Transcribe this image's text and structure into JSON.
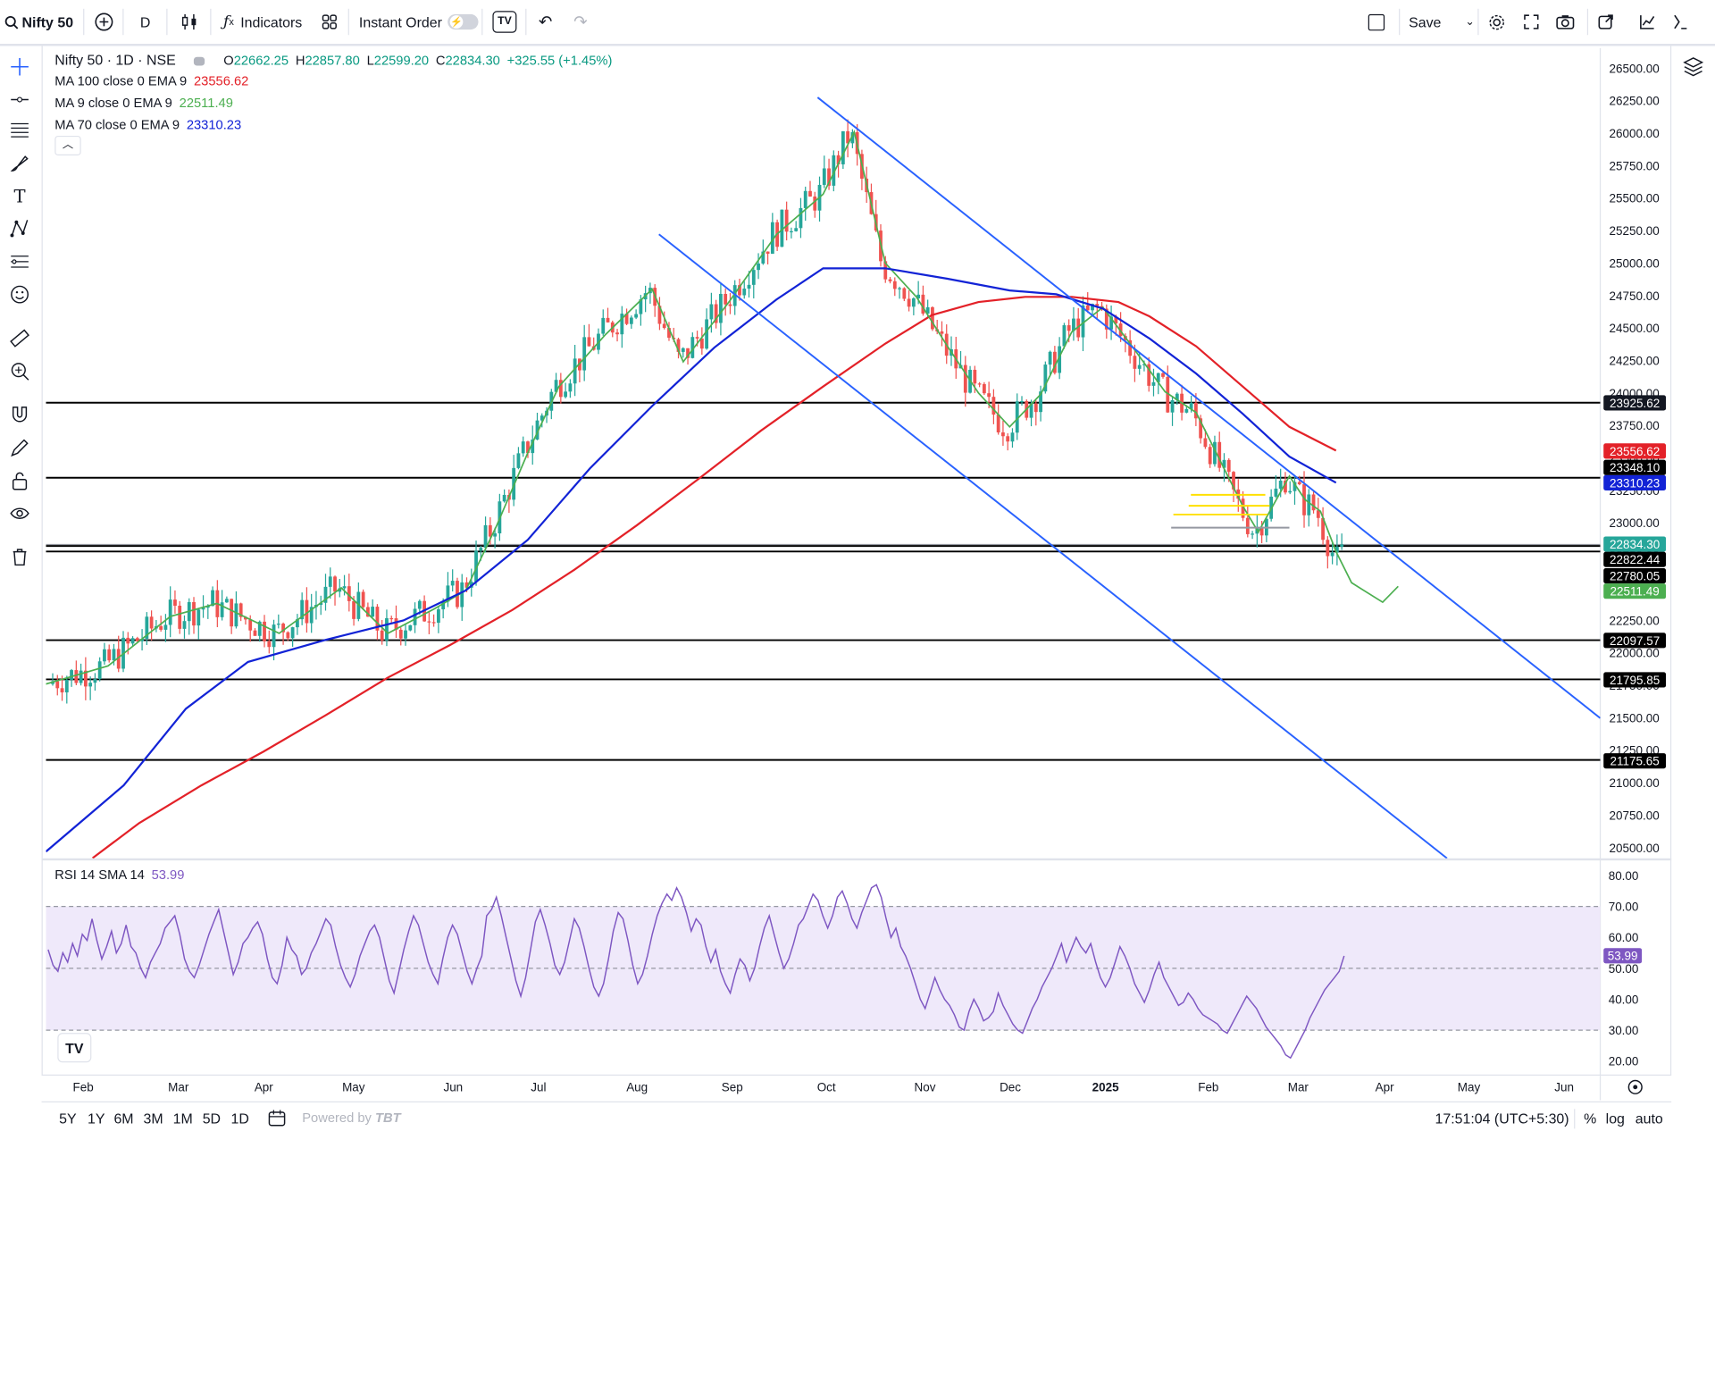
{
  "toolbar": {
    "symbol": "Nifty 50",
    "interval": "D",
    "indicators_label": "Indicators",
    "instant_order_label": "Instant Order",
    "save_label": "Save"
  },
  "legend": {
    "title": "Nifty 50 · 1D · NSE",
    "o_label": "O",
    "o": "22662.25",
    "h_label": "H",
    "h": "22857.80",
    "l_label": "L",
    "l": "22599.20",
    "c_label": "C",
    "c": "22834.30",
    "change": "+325.55 (+1.45%)",
    "ma100_label": "MA 100 close 0 EMA 9",
    "ma100_value": "23556.62",
    "ma9_label": "MA 9 close 0 EMA 9",
    "ma9_value": "22511.49",
    "ma70_label": "MA 70 close 0 EMA 9",
    "ma70_value": "23310.23",
    "rsi_label": "RSI 14 SMA 14",
    "rsi_value": "53.99"
  },
  "colors": {
    "up": "#26a69a",
    "down": "#ef5350",
    "ma100": "#e32128",
    "ma9": "#4caf50",
    "ma70": "#1223d6",
    "trend": "#2962ff",
    "rsi": "#7e57c2",
    "rsi_band": "#efe9fa"
  },
  "bottom": {
    "ranges": [
      "5Y",
      "1Y",
      "6M",
      "3M",
      "1M",
      "5D",
      "1D"
    ],
    "powered_by": "Powered by",
    "time": "17:51:04 (UTC+5:30)",
    "pct": "%",
    "log": "log",
    "auto": "auto"
  },
  "chart_data": [
    {
      "type": "candlestick",
      "title": "Nifty 50 · 1D · NSE",
      "x_ticks": [
        "Feb",
        "Mar",
        "Apr",
        "May",
        "Jun",
        "Jul",
        "Aug",
        "Sep",
        "Oct",
        "Nov",
        "Dec",
        "2025",
        "Feb",
        "Mar",
        "Apr",
        "May",
        "Jun"
      ],
      "y_ticks": [
        20500,
        20750,
        21000,
        21250,
        21500,
        21750,
        22000,
        22250,
        22500,
        22750,
        23000,
        23250,
        23500,
        23750,
        24000,
        24250,
        24500,
        24750,
        25000,
        25250,
        25500,
        25750,
        26000,
        26250,
        26500
      ],
      "ylim": [
        20420,
        26600
      ],
      "last_close": 22834.3,
      "series": [
        {
          "name": "MA 100 close 0 EMA 9",
          "last": 23556.62,
          "points": [
            [
              0.03,
              20420
            ],
            [
              0.06,
              20690
            ],
            [
              0.1,
              20980
            ],
            [
              0.14,
              21240
            ],
            [
              0.18,
              21520
            ],
            [
              0.22,
              21810
            ],
            [
              0.26,
              22060
            ],
            [
              0.3,
              22330
            ],
            [
              0.34,
              22640
            ],
            [
              0.38,
              22980
            ],
            [
              0.42,
              23340
            ],
            [
              0.46,
              23710
            ],
            [
              0.5,
              24050
            ],
            [
              0.54,
              24380
            ],
            [
              0.57,
              24600
            ],
            [
              0.6,
              24700
            ],
            [
              0.63,
              24740
            ],
            [
              0.66,
              24740
            ],
            [
              0.69,
              24700
            ],
            [
              0.71,
              24590
            ],
            [
              0.74,
              24360
            ],
            [
              0.77,
              24050
            ],
            [
              0.8,
              23740
            ],
            [
              0.83,
              23556.62
            ]
          ]
        },
        {
          "name": "MA 9 close 0 EMA 9",
          "last": 22511.49,
          "points": [
            [
              0,
              21760
            ],
            [
              0.04,
              21900
            ],
            [
              0.08,
              22280
            ],
            [
              0.11,
              22380
            ],
            [
              0.15,
              22150
            ],
            [
              0.19,
              22500
            ],
            [
              0.22,
              22150
            ],
            [
              0.25,
              22340
            ],
            [
              0.27,
              22480
            ],
            [
              0.29,
              22980
            ],
            [
              0.31,
              23540
            ],
            [
              0.33,
              24050
            ],
            [
              0.36,
              24450
            ],
            [
              0.39,
              24800
            ],
            [
              0.41,
              24240
            ],
            [
              0.44,
              24710
            ],
            [
              0.47,
              25220
            ],
            [
              0.5,
              25530
            ],
            [
              0.52,
              26010
            ],
            [
              0.54,
              25000
            ],
            [
              0.56,
              24740
            ],
            [
              0.58,
              24360
            ],
            [
              0.6,
              24000
            ],
            [
              0.62,
              23740
            ],
            [
              0.64,
              23990
            ],
            [
              0.66,
              24470
            ],
            [
              0.68,
              24660
            ],
            [
              0.7,
              24340
            ],
            [
              0.72,
              24010
            ],
            [
              0.74,
              23850
            ],
            [
              0.75,
              23610
            ],
            [
              0.77,
              23130
            ],
            [
              0.78,
              22930
            ],
            [
              0.8,
              23360
            ],
            [
              0.81,
              23180
            ],
            [
              0.82,
              23090
            ],
            [
              0.83,
              22780
            ],
            [
              0.84,
              22540
            ],
            [
              0.86,
              22390
            ],
            [
              0.87,
              22511.49
            ]
          ]
        },
        {
          "name": "MA 70 close 0 EMA 9",
          "last": 23310.23,
          "points": [
            [
              0,
              20470
            ],
            [
              0.05,
              20980
            ],
            [
              0.09,
              21570
            ],
            [
              0.13,
              21930
            ],
            [
              0.18,
              22100
            ],
            [
              0.23,
              22250
            ],
            [
              0.27,
              22480
            ],
            [
              0.31,
              22870
            ],
            [
              0.35,
              23420
            ],
            [
              0.39,
              23900
            ],
            [
              0.43,
              24350
            ],
            [
              0.47,
              24720
            ],
            [
              0.5,
              24960
            ],
            [
              0.54,
              24960
            ],
            [
              0.58,
              24880
            ],
            [
              0.62,
              24790
            ],
            [
              0.65,
              24760
            ],
            [
              0.68,
              24650
            ],
            [
              0.71,
              24420
            ],
            [
              0.74,
              24150
            ],
            [
              0.77,
              23840
            ],
            [
              0.8,
              23510
            ],
            [
              0.83,
              23310.23
            ]
          ]
        }
      ],
      "horizontal_levels": [
        23925.62,
        23348.1,
        22834.3,
        22822.44,
        22780.05,
        22097.57,
        21795.85,
        21175.65
      ]
    },
    {
      "type": "line",
      "title": "RSI 14 SMA 14",
      "y_ticks": [
        20,
        30,
        40,
        50,
        60,
        70,
        80
      ],
      "ylim": [
        17,
        82
      ],
      "band": [
        30,
        70
      ],
      "midline": 50,
      "last": 53.99,
      "values": [
        56,
        51,
        49,
        55,
        52,
        58,
        54,
        61,
        59,
        66,
        59,
        53,
        57,
        62,
        55,
        58,
        64,
        57,
        55,
        50,
        47,
        52,
        55,
        58,
        63,
        65,
        67,
        61,
        53,
        49,
        47,
        51,
        56,
        61,
        65,
        69,
        62,
        55,
        48,
        52,
        58,
        60,
        63,
        65,
        61,
        53,
        47,
        45,
        51,
        60,
        56,
        54,
        48,
        50,
        55,
        58,
        62,
        66,
        64,
        57,
        51,
        47,
        44,
        48,
        54,
        58,
        62,
        64,
        60,
        53,
        46,
        42,
        49,
        56,
        62,
        67,
        64,
        58,
        52,
        48,
        45,
        53,
        60,
        64,
        61,
        55,
        49,
        45,
        50,
        54,
        67,
        69,
        73,
        67,
        60,
        53,
        46,
        41,
        47,
        56,
        65,
        69,
        64,
        58,
        51,
        48,
        52,
        59,
        66,
        63,
        57,
        50,
        44,
        41,
        45,
        53,
        62,
        68,
        66,
        59,
        51,
        45,
        48,
        54,
        61,
        67,
        71,
        74,
        72,
        76,
        73,
        68,
        62,
        66,
        64,
        57,
        52,
        56,
        49,
        45,
        42,
        48,
        53,
        51,
        46,
        50,
        57,
        63,
        67,
        61,
        55,
        50,
        53,
        58,
        64,
        66,
        70,
        74,
        72,
        67,
        63,
        67,
        73,
        75,
        71,
        66,
        63,
        68,
        72,
        76,
        77,
        73,
        66,
        60,
        63,
        57,
        54,
        50,
        45,
        40,
        37,
        42,
        47,
        43,
        40,
        38,
        35,
        31,
        30,
        36,
        40,
        37,
        33,
        34,
        36,
        42,
        38,
        35,
        32,
        30,
        29,
        33,
        37,
        40,
        44,
        47,
        50,
        54,
        58,
        52,
        56,
        60,
        57,
        55,
        58,
        52,
        47,
        44,
        47,
        52,
        57,
        54,
        50,
        45,
        42,
        39,
        43,
        48,
        52,
        47,
        44,
        41,
        38,
        39,
        42,
        40,
        37,
        35,
        34,
        33,
        32,
        30,
        29,
        32,
        35,
        38,
        41,
        39,
        37,
        34,
        31,
        29,
        27,
        25,
        22,
        21,
        24,
        27,
        30,
        34,
        37,
        40,
        43,
        45,
        47,
        49,
        53.99
      ]
    }
  ]
}
